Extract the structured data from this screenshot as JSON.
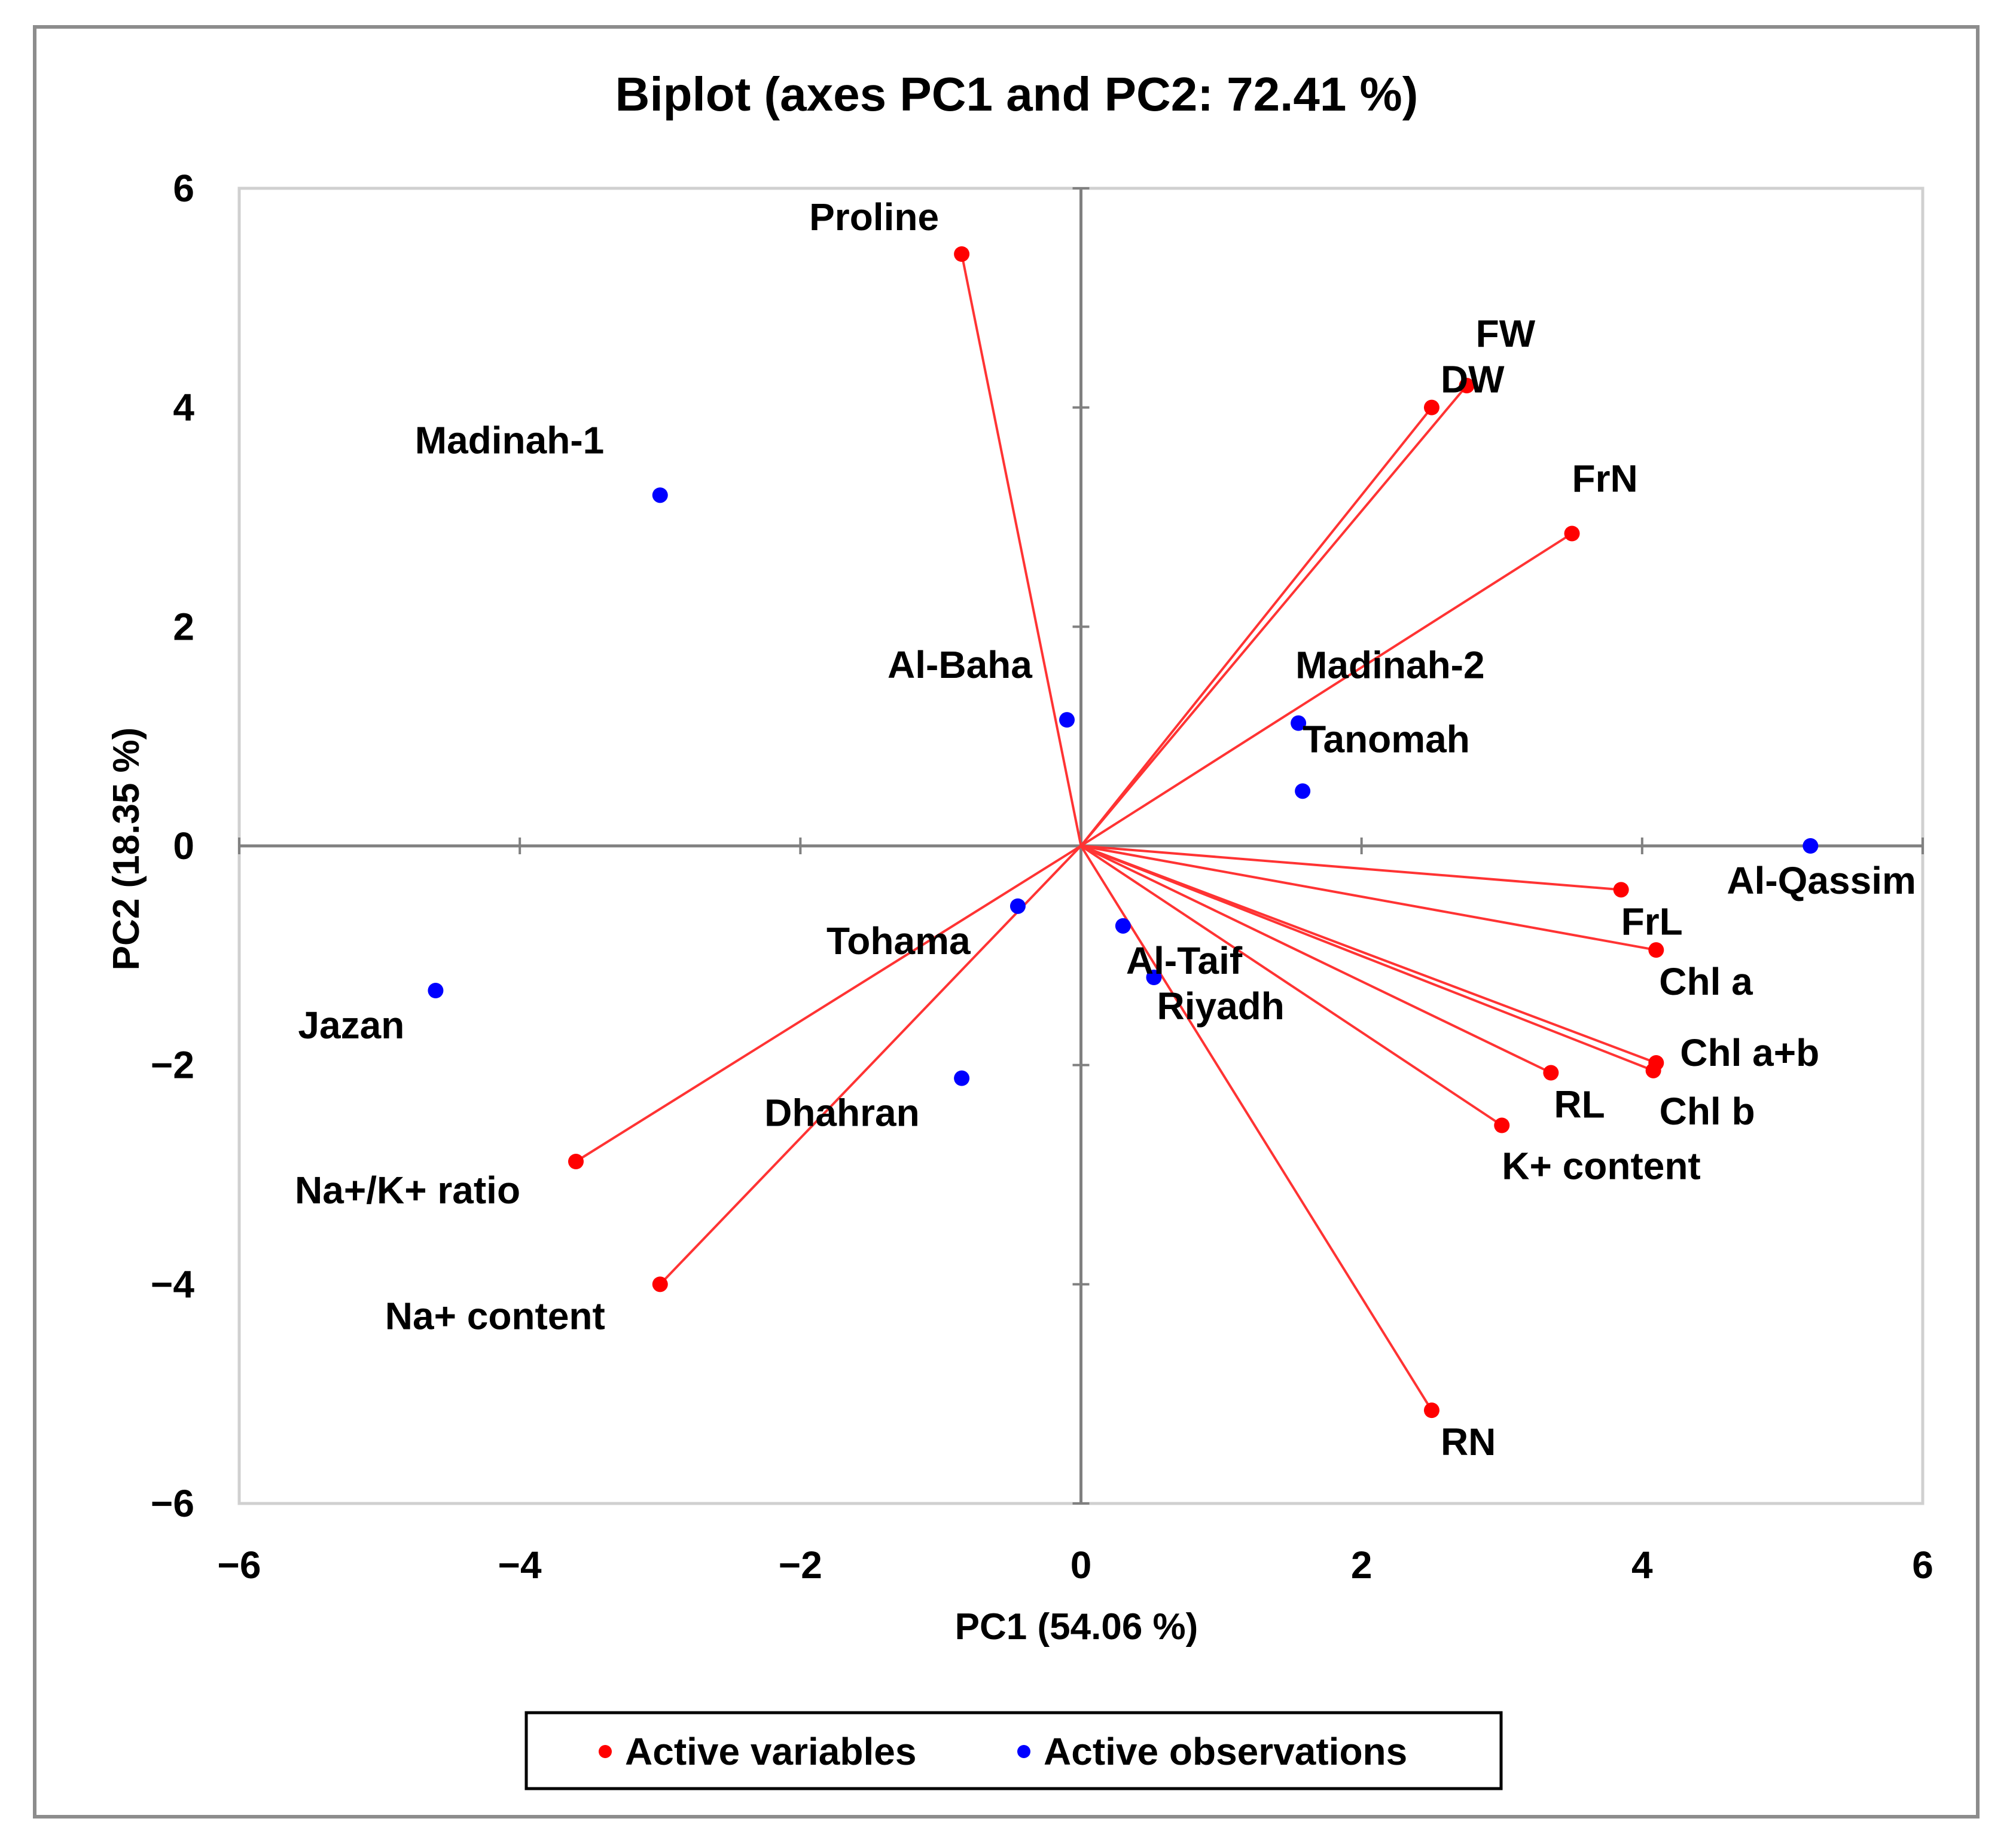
{
  "chart_data": {
    "type": "scatter",
    "subtype": "biplot",
    "title": "Biplot (axes PC1 and PC2: 72.41 %)",
    "xlabel": "PC1 (54.06 %)",
    "ylabel": "PC2 (18.35 %)",
    "xlim": [
      -6,
      6
    ],
    "ylim": [
      -6,
      6
    ],
    "xticks": [
      -6,
      -4,
      -2,
      0,
      2,
      4,
      6
    ],
    "yticks": [
      -6,
      -4,
      -2,
      0,
      2,
      4,
      6
    ],
    "legend": {
      "placement": "bottom",
      "entries": [
        {
          "label": "Active variables",
          "color": "#ff0000"
        },
        {
          "label": "Active observations",
          "color": "#0000ff"
        }
      ]
    },
    "variables": [
      {
        "name": "Proline",
        "x": -0.85,
        "y": 5.4
      },
      {
        "name": "FW",
        "x": 2.75,
        "y": 4.2
      },
      {
        "name": "DW",
        "x": 2.5,
        "y": 4.0
      },
      {
        "name": "FrN",
        "x": 3.5,
        "y": 2.85
      },
      {
        "name": "FrL",
        "x": 3.85,
        "y": -0.4
      },
      {
        "name": "Chl a",
        "x": 4.1,
        "y": -0.95
      },
      {
        "name": "Chl a+b",
        "x": 4.1,
        "y": -1.98
      },
      {
        "name": "Chl b",
        "x": 4.08,
        "y": -2.05
      },
      {
        "name": "RL",
        "x": 3.35,
        "y": -2.07
      },
      {
        "name": "K+ content",
        "x": 3.0,
        "y": -2.55
      },
      {
        "name": "RN",
        "x": 2.5,
        "y": -5.15
      },
      {
        "name": "Na+/K+  ratio",
        "x": -3.6,
        "y": -2.88
      },
      {
        "name": "Na+ content",
        "x": -3.0,
        "y": -4.0
      }
    ],
    "observations": [
      {
        "name": "Madinah-1",
        "x": -3.0,
        "y": 3.2
      },
      {
        "name": "Al-Baha",
        "x": -0.1,
        "y": 1.15
      },
      {
        "name": "Madinah-2",
        "x": 1.55,
        "y": 1.12
      },
      {
        "name": "Tanomah",
        "x": 1.58,
        "y": 0.5
      },
      {
        "name": "Al-Qassim",
        "x": 5.2,
        "y": 0.0
      },
      {
        "name": "Tohama",
        "x": -0.45,
        "y": -0.55
      },
      {
        "name": "Al-Taif",
        "x": 0.3,
        "y": -0.73
      },
      {
        "name": "Riyadh",
        "x": 0.52,
        "y": -1.2
      },
      {
        "name": "Jazan",
        "x": -4.6,
        "y": -1.32
      },
      {
        "name": "Dhahran",
        "x": -0.85,
        "y": -2.12
      }
    ]
  }
}
